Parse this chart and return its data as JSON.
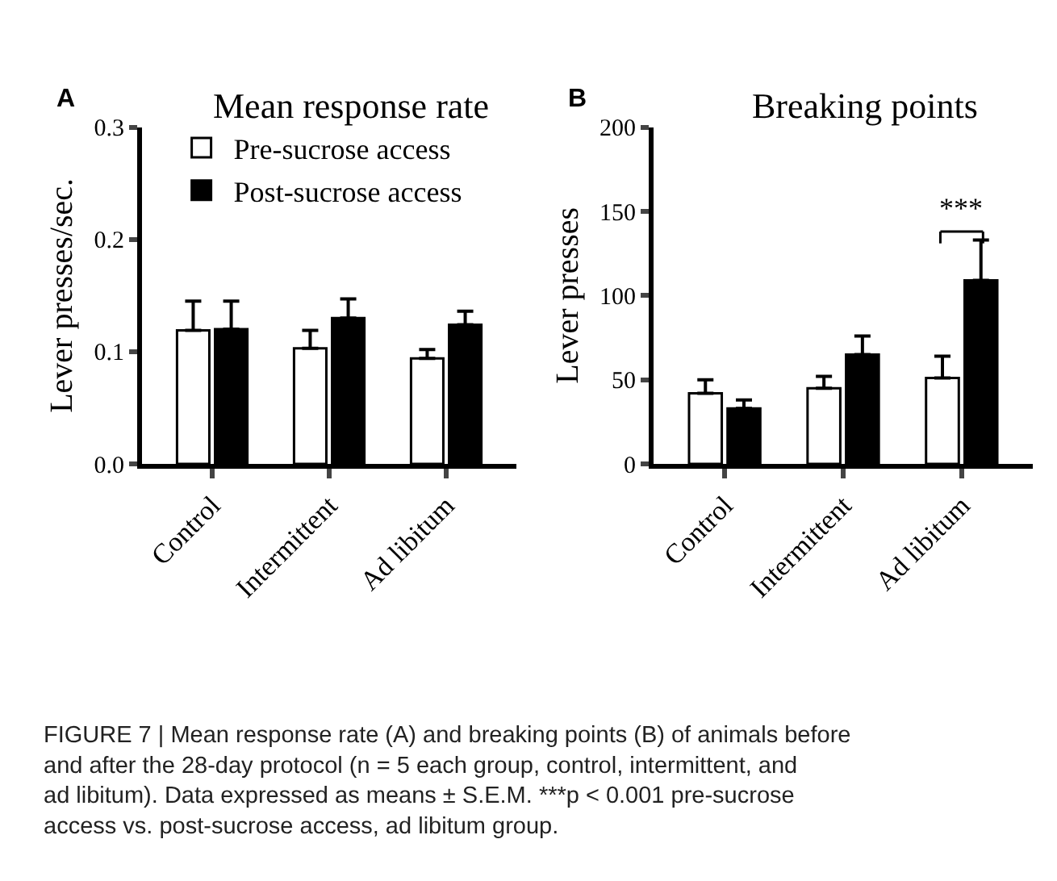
{
  "chart_data": [
    {
      "type": "bar",
      "title": "Mean response rate",
      "ylabel": "Lever presses/sec.",
      "categories": [
        "Control",
        "Intermittent",
        "Ad libitum"
      ],
      "series": [
        {
          "name": "Pre-sucrose access",
          "color": "#ffffff",
          "values": [
            0.119,
            0.103,
            0.094
          ],
          "errors": [
            [
              0.119,
              0.145
            ],
            [
              0.103,
              0.119
            ],
            [
              0.094,
              0.102
            ]
          ]
        },
        {
          "name": "Post-sucrose access",
          "color": "#000000",
          "values": [
            0.12,
            0.13,
            0.124
          ],
          "errors": [
            [
              0.12,
              0.145
            ],
            [
              0.13,
              0.147
            ],
            [
              0.124,
              0.136
            ]
          ]
        }
      ],
      "ylim": [
        0,
        0.3
      ],
      "yticks": [
        {
          "value": 0,
          "label": "0.0"
        },
        0.1,
        0.2,
        0.3
      ],
      "legend": "top",
      "annotations": [
        "A"
      ]
    },
    {
      "type": "bar",
      "title": "Breaking points",
      "ylabel": "Lever presses",
      "categories": [
        "Control",
        "Intermittent",
        "Ad libitum"
      ],
      "series": [
        {
          "color": "#ffffff",
          "values": [
            42,
            45,
            51
          ],
          "errors": [
            [
              42,
              50
            ],
            [
              45,
              52
            ],
            [
              51,
              64
            ]
          ]
        },
        {
          "color": "#000000",
          "values": [
            33,
            65,
            109
          ],
          "errors": [
            [
              33,
              38
            ],
            [
              65,
              76
            ],
            [
              109,
              133
            ]
          ]
        }
      ],
      "ylim": [
        0,
        200
      ],
      "yticks": [
        0,
        50,
        100,
        150,
        200
      ],
      "legend": false,
      "annotations": [
        "B",
        "***",
        "FIGURE 7 | Mean response rate (A) and breaking points (B) of animals before and after the 28-day protocol (n = 5 each group, control, intermittent, and ad libitum). Data expressed as means ± S.E.M. ***p < 0.001 pre-sucrose access vs. post-sucrose access, ad libitum group."
      ]
    }
  ]
}
